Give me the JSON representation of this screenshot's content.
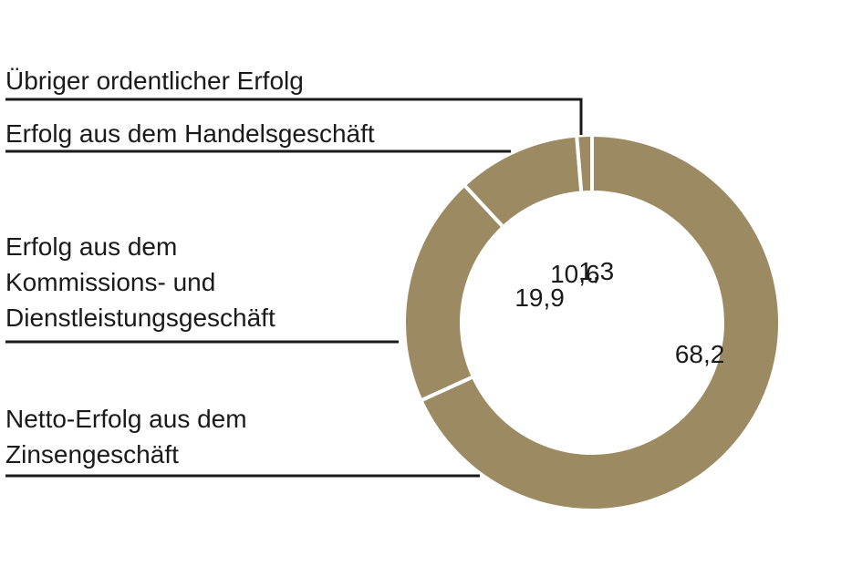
{
  "chart_data": {
    "type": "pie",
    "style": "donut",
    "slice_color": "#9c8a63",
    "separator_color": "#ffffff",
    "slices": [
      {
        "label": "Netto-Erfolg aus dem Zinsengeschäft",
        "value": 68.2,
        "value_label": "68,2"
      },
      {
        "label": "Erfolg aus dem Kommissions- und Dienstleistungsgeschäft",
        "value": 19.9,
        "value_label": "19,9"
      },
      {
        "label": "Erfolg aus dem Handelsgeschäft",
        "value": 10.6,
        "value_label": "10,6"
      },
      {
        "label": "Übriger ordentlicher Erfolg",
        "value": 1.3,
        "value_label": "1,3"
      }
    ]
  },
  "labels": {
    "uebriger": "Übriger ordentlicher Erfolg",
    "handel": "Erfolg aus dem Handelsgeschäft",
    "kommission": [
      "Erfolg aus dem",
      "Kommissions- und",
      "Dienstleistungsgeschäft"
    ],
    "zins": [
      "Netto-Erfolg aus dem",
      "Zinsengeschäft"
    ]
  }
}
